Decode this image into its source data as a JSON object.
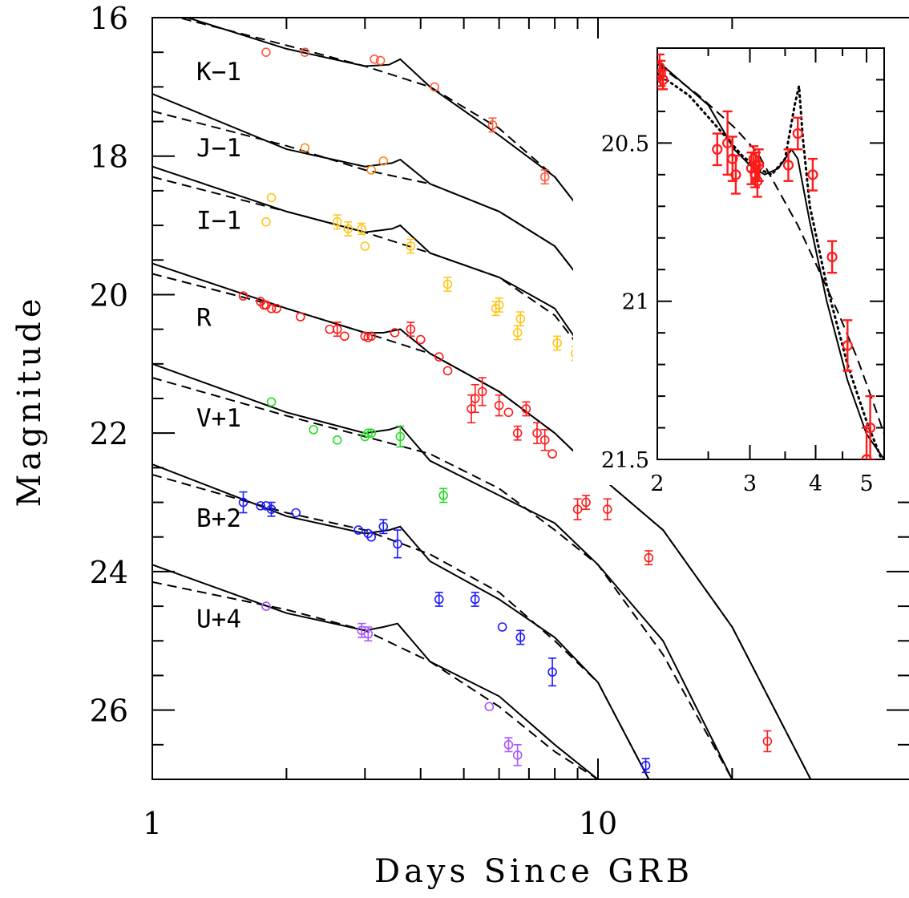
{
  "chart_data": {
    "type": "scatter",
    "xlabel": "Days Since GRB",
    "ylabel": "Magnitude",
    "x_scale": "log",
    "xlim": [
      1,
      22
    ],
    "ylim": [
      27,
      16
    ],
    "x_ticks": [
      1,
      10
    ],
    "y_ticks": [
      16,
      18,
      20,
      22,
      24,
      26
    ],
    "series": [
      {
        "name": "K−1",
        "color": "#ff5a3c",
        "model_solid": [
          [
            1.2,
            16.0
          ],
          [
            2.0,
            16.45
          ],
          [
            3.0,
            16.7
          ],
          [
            3.4,
            16.68
          ],
          [
            3.6,
            16.6
          ],
          [
            4.2,
            17.0
          ],
          [
            6.0,
            17.7
          ],
          [
            8.0,
            18.3
          ],
          [
            10.0,
            19.1
          ]
        ],
        "model_dashed": [
          [
            1.0,
            15.9
          ],
          [
            2.0,
            16.4
          ],
          [
            3.0,
            16.7
          ],
          [
            4.2,
            17.0
          ],
          [
            6.0,
            17.6
          ],
          [
            8.0,
            18.3
          ],
          [
            10.0,
            19.1
          ]
        ],
        "points": [
          [
            1.8,
            16.5,
            0
          ],
          [
            2.2,
            16.5,
            0
          ],
          [
            3.15,
            16.6,
            0
          ],
          [
            3.25,
            16.62,
            0
          ],
          [
            4.3,
            17.0,
            0
          ],
          [
            5.8,
            17.55,
            0.1
          ],
          [
            7.6,
            18.3,
            0.1
          ]
        ]
      },
      {
        "name": "J−1",
        "color": "#ff8a1a",
        "model_solid": [
          [
            1.0,
            17.1
          ],
          [
            2.0,
            17.9
          ],
          [
            3.0,
            18.15
          ],
          [
            3.45,
            18.1
          ],
          [
            3.6,
            18.05
          ],
          [
            4.2,
            18.4
          ],
          [
            6.0,
            18.8
          ],
          [
            8.0,
            19.3
          ],
          [
            10.0,
            20.1
          ]
        ],
        "model_dashed": [
          [
            1.0,
            17.35
          ],
          [
            2.0,
            17.85
          ],
          [
            3.0,
            18.2
          ],
          [
            4.2,
            18.4
          ],
          [
            6.0,
            18.8
          ],
          [
            8.0,
            19.3
          ],
          [
            10.0,
            20.1
          ]
        ],
        "points": [
          [
            2.2,
            17.88,
            0
          ],
          [
            3.1,
            18.2,
            0
          ],
          [
            3.3,
            18.07,
            0
          ]
        ]
      },
      {
        "name": "I−1",
        "color": "#ffc61a",
        "model_solid": [
          [
            1.0,
            18.15
          ],
          [
            2.0,
            18.8
          ],
          [
            3.0,
            19.1
          ],
          [
            3.45,
            19.05
          ],
          [
            3.6,
            19.0
          ],
          [
            4.2,
            19.4
          ],
          [
            6.0,
            19.75
          ],
          [
            8.0,
            20.2
          ],
          [
            10.0,
            21.1
          ]
        ],
        "model_dashed": [
          [
            1.0,
            18.3
          ],
          [
            2.0,
            18.8
          ],
          [
            3.0,
            19.1
          ],
          [
            4.2,
            19.4
          ],
          [
            6.0,
            19.75
          ],
          [
            8.0,
            20.3
          ],
          [
            10.0,
            21.1
          ]
        ],
        "points": [
          [
            1.8,
            18.95,
            0
          ],
          [
            1.85,
            18.6,
            0
          ],
          [
            2.6,
            18.95,
            0.1
          ],
          [
            2.75,
            19.05,
            0.1
          ],
          [
            2.95,
            19.05,
            0.08
          ],
          [
            3.0,
            19.3,
            0
          ],
          [
            3.8,
            19.3,
            0.1
          ],
          [
            4.6,
            19.85,
            0.1
          ],
          [
            5.9,
            20.2,
            0.1
          ],
          [
            6.0,
            20.15,
            0.1
          ],
          [
            6.6,
            20.55,
            0.1
          ],
          [
            6.7,
            20.35,
            0.1
          ],
          [
            8.1,
            20.7,
            0.1
          ],
          [
            8.9,
            20.85,
            0.1
          ],
          [
            10.1,
            21.6,
            0.15
          ]
        ]
      },
      {
        "name": "R",
        "color": "#ff1a1a",
        "model_solid": [
          [
            1.0,
            19.55
          ],
          [
            2.0,
            20.2
          ],
          [
            3.0,
            20.55
          ],
          [
            3.3,
            20.55
          ],
          [
            3.6,
            20.5
          ],
          [
            4.2,
            20.85
          ],
          [
            6.0,
            21.4
          ],
          [
            8.0,
            22.0
          ],
          [
            10.0,
            22.6
          ],
          [
            14.0,
            23.4
          ],
          [
            20.0,
            24.8
          ],
          [
            30.0,
            27.0
          ]
        ],
        "model_dashed": [
          [
            1.0,
            19.7
          ],
          [
            2.0,
            20.2
          ],
          [
            3.0,
            20.55
          ],
          [
            4.2,
            20.85
          ],
          [
            6.0,
            21.4
          ],
          [
            8.0,
            22.0
          ],
          [
            10.0,
            22.6
          ],
          [
            14.0,
            23.4
          ],
          [
            20.0,
            24.8
          ],
          [
            30.0,
            27.0
          ]
        ],
        "points": [
          [
            1.6,
            20.02,
            0
          ],
          [
            1.75,
            20.1,
            0
          ],
          [
            1.78,
            20.15,
            0
          ],
          [
            1.8,
            20.15,
            0
          ],
          [
            1.85,
            20.2,
            0
          ],
          [
            1.9,
            20.2,
            0
          ],
          [
            2.15,
            20.32,
            0
          ],
          [
            2.5,
            20.5,
            0
          ],
          [
            2.6,
            20.5,
            0.1
          ],
          [
            2.7,
            20.6,
            0
          ],
          [
            3.0,
            20.6,
            0
          ],
          [
            3.05,
            20.62,
            0
          ],
          [
            3.1,
            20.6,
            0
          ],
          [
            3.5,
            20.55,
            0
          ],
          [
            3.8,
            20.5,
            0.1
          ],
          [
            4.0,
            20.65,
            0
          ],
          [
            4.4,
            20.9,
            0
          ],
          [
            4.6,
            21.1,
            0
          ],
          [
            5.2,
            21.65,
            0.2
          ],
          [
            5.3,
            21.5,
            0.2
          ],
          [
            5.5,
            21.4,
            0.2
          ],
          [
            6.0,
            21.6,
            0.15
          ],
          [
            6.3,
            21.7,
            0
          ],
          [
            6.6,
            22.0,
            0.1
          ],
          [
            6.9,
            21.65,
            0.1
          ],
          [
            7.3,
            22.0,
            0.15
          ],
          [
            7.6,
            22.1,
            0.15
          ],
          [
            7.9,
            22.3,
            0
          ],
          [
            9.0,
            23.1,
            0.15
          ],
          [
            9.4,
            23.0,
            0.1
          ],
          [
            10.5,
            23.1,
            0.15
          ],
          [
            13.0,
            23.8,
            0.1
          ],
          [
            24.0,
            26.45,
            0.15
          ]
        ]
      },
      {
        "name": "V+1",
        "color": "#22dd22",
        "model_solid": [
          [
            1.0,
            21.0
          ],
          [
            2.0,
            21.7
          ],
          [
            3.0,
            22.0
          ],
          [
            3.4,
            21.95
          ],
          [
            3.6,
            21.9
          ],
          [
            4.2,
            22.4
          ],
          [
            6.0,
            22.9
          ],
          [
            8.0,
            23.3
          ],
          [
            10.0,
            23.9
          ],
          [
            14.0,
            25.0
          ],
          [
            20.0,
            27.0
          ]
        ],
        "model_dashed": [
          [
            1.0,
            21.2
          ],
          [
            2.0,
            21.75
          ],
          [
            3.0,
            22.05
          ],
          [
            4.2,
            22.3
          ],
          [
            6.0,
            22.8
          ],
          [
            8.0,
            23.4
          ],
          [
            10.0,
            23.9
          ],
          [
            14.0,
            25.2
          ],
          [
            20.0,
            27.0
          ]
        ],
        "points": [
          [
            1.85,
            21.55,
            0
          ],
          [
            2.3,
            21.95,
            0
          ],
          [
            2.6,
            22.1,
            0
          ],
          [
            3.0,
            22.05,
            0
          ],
          [
            3.05,
            22.0,
            0
          ],
          [
            3.1,
            22.0,
            0
          ],
          [
            3.6,
            22.05,
            0.15
          ],
          [
            4.5,
            22.9,
            0.1
          ]
        ]
      },
      {
        "name": "B+2",
        "color": "#1a1aff",
        "model_solid": [
          [
            1.0,
            22.45
          ],
          [
            2.0,
            23.2
          ],
          [
            3.0,
            23.45
          ],
          [
            3.4,
            23.4
          ],
          [
            3.6,
            23.35
          ],
          [
            4.2,
            23.85
          ],
          [
            6.0,
            24.4
          ],
          [
            8.0,
            24.95
          ],
          [
            10.0,
            25.6
          ],
          [
            13.0,
            27.0
          ]
        ],
        "model_dashed": [
          [
            1.0,
            22.6
          ],
          [
            2.0,
            23.15
          ],
          [
            3.0,
            23.4
          ],
          [
            4.2,
            23.75
          ],
          [
            6.0,
            24.3
          ],
          [
            8.0,
            25.0
          ],
          [
            10.0,
            25.6
          ],
          [
            13.0,
            27.0
          ]
        ],
        "points": [
          [
            1.6,
            23.0,
            0.15
          ],
          [
            1.75,
            23.05,
            0
          ],
          [
            1.8,
            23.05,
            0
          ],
          [
            1.85,
            23.1,
            0.1
          ],
          [
            2.1,
            23.15,
            0
          ],
          [
            2.9,
            23.4,
            0
          ],
          [
            3.05,
            23.45,
            0
          ],
          [
            3.1,
            23.5,
            0
          ],
          [
            3.3,
            23.35,
            0.1
          ],
          [
            3.55,
            23.6,
            0.2
          ],
          [
            4.4,
            24.4,
            0.1
          ],
          [
            5.3,
            24.4,
            0.1
          ],
          [
            6.1,
            24.8,
            0
          ],
          [
            6.7,
            24.95,
            0.1
          ],
          [
            7.9,
            25.45,
            0.2
          ],
          [
            12.8,
            26.8,
            0.1
          ]
        ]
      },
      {
        "name": "U+4",
        "color": "#aa55ff",
        "model_solid": [
          [
            1.0,
            23.9
          ],
          [
            2.0,
            24.6
          ],
          [
            3.0,
            24.85
          ],
          [
            3.3,
            24.8
          ],
          [
            3.55,
            24.75
          ],
          [
            4.2,
            25.3
          ],
          [
            6.0,
            25.8
          ],
          [
            8.0,
            26.5
          ],
          [
            10.0,
            27.0
          ]
        ],
        "model_dashed": [
          [
            1.0,
            24.15
          ],
          [
            2.0,
            24.55
          ],
          [
            3.0,
            24.85
          ],
          [
            4.2,
            25.3
          ],
          [
            6.0,
            25.95
          ],
          [
            8.0,
            26.6
          ],
          [
            10.0,
            27.0
          ]
        ],
        "points": [
          [
            1.8,
            24.5,
            0
          ],
          [
            2.95,
            24.85,
            0.1
          ],
          [
            3.05,
            24.9,
            0.1
          ],
          [
            5.7,
            25.95,
            0
          ],
          [
            6.3,
            26.5,
            0.1
          ],
          [
            6.6,
            26.65,
            0.15
          ]
        ]
      }
    ],
    "inset": {
      "xlim": [
        2,
        5.4
      ],
      "ylim": [
        21.5,
        20.2
      ],
      "x_ticks": [
        2,
        3,
        4,
        5
      ],
      "y_ticks": [
        20.5,
        21,
        21.5
      ],
      "color": "#ff1a1a",
      "model_solid": [
        [
          2.0,
          20.24
        ],
        [
          2.2,
          20.3
        ],
        [
          2.5,
          20.38
        ],
        [
          2.8,
          20.52
        ],
        [
          3.0,
          20.57
        ],
        [
          3.2,
          20.6
        ],
        [
          3.4,
          20.58
        ],
        [
          3.6,
          20.52
        ],
        [
          3.7,
          20.55
        ],
        [
          3.9,
          20.75
        ],
        [
          4.2,
          21.0
        ],
        [
          4.6,
          21.25
        ],
        [
          5.0,
          21.42
        ],
        [
          5.4,
          21.5
        ]
      ],
      "model_dashed": [
        [
          2.0,
          20.25
        ],
        [
          2.4,
          20.35
        ],
        [
          2.8,
          20.45
        ],
        [
          3.1,
          20.53
        ],
        [
          3.4,
          20.65
        ],
        [
          3.7,
          20.76
        ],
        [
          4.0,
          20.88
        ],
        [
          4.4,
          21.03
        ],
        [
          4.8,
          21.18
        ],
        [
          5.2,
          21.34
        ],
        [
          5.4,
          21.42
        ]
      ],
      "model_dotted": [
        [
          2.0,
          20.28
        ],
        [
          2.3,
          20.35
        ],
        [
          2.6,
          20.45
        ],
        [
          2.9,
          20.54
        ],
        [
          3.1,
          20.58
        ],
        [
          3.3,
          20.6
        ],
        [
          3.5,
          20.55
        ],
        [
          3.65,
          20.38
        ],
        [
          3.72,
          20.32
        ],
        [
          3.78,
          20.48
        ],
        [
          3.9,
          20.7
        ],
        [
          4.2,
          20.95
        ],
        [
          4.6,
          21.2
        ],
        [
          5.0,
          21.38
        ],
        [
          5.4,
          21.52
        ]
      ],
      "points": [
        [
          2.02,
          20.26,
          0.04
        ],
        [
          2.03,
          20.28,
          0.04
        ],
        [
          2.05,
          20.3,
          0.03
        ],
        [
          2.6,
          20.52,
          0.05
        ],
        [
          2.72,
          20.5,
          0.1
        ],
        [
          2.78,
          20.55,
          0.07
        ],
        [
          2.82,
          20.6,
          0.06
        ],
        [
          3.02,
          20.58,
          0.05
        ],
        [
          3.05,
          20.55,
          0.04
        ],
        [
          3.07,
          20.6,
          0.04
        ],
        [
          3.08,
          20.57,
          0.04
        ],
        [
          3.1,
          20.62,
          0.05
        ],
        [
          3.12,
          20.57,
          0.05
        ],
        [
          3.55,
          20.57,
          0.05
        ],
        [
          3.7,
          20.47,
          0.05
        ],
        [
          3.95,
          20.6,
          0.05
        ],
        [
          4.3,
          20.86,
          0.05
        ],
        [
          4.6,
          21.14,
          0.08
        ],
        [
          5.0,
          21.5,
          0.1
        ],
        [
          5.08,
          21.4,
          0.1
        ]
      ]
    }
  }
}
